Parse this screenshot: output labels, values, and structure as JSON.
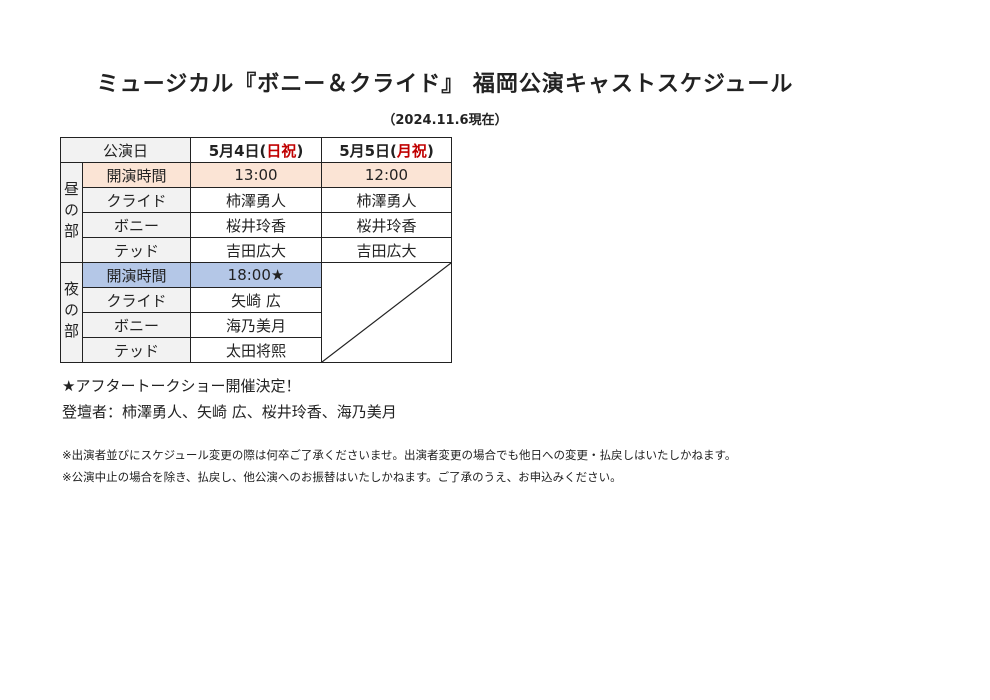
{
  "title": "ミュージカル『ボニー＆クライド』 福岡公演キャストスケジュール",
  "as_of": "（2024.11.6現在）",
  "table": {
    "corner": "公演日",
    "days": [
      {
        "date": "5月4日(",
        "holiday": "日祝",
        ")": ")"
      },
      {
        "date": "5月5日(",
        "holiday": "月祝",
        ")": ")"
      }
    ],
    "close_paren": ")",
    "matinee": {
      "label": "昼の部",
      "rows": [
        {
          "role": "開演時間",
          "d1": "13:00",
          "d2": "12:00"
        },
        {
          "role": "クライド",
          "d1": "柿澤勇人",
          "d2": "柿澤勇人"
        },
        {
          "role": "ボニー",
          "d1": "桜井玲香",
          "d2": "桜井玲香"
        },
        {
          "role": "テッド",
          "d1": "吉田広大",
          "d2": "吉田広大"
        }
      ]
    },
    "evening": {
      "label": "夜の部",
      "rows": [
        {
          "role": "開演時間",
          "d1": "18:00★"
        },
        {
          "role": "クライド",
          "d1": "矢崎 広"
        },
        {
          "role": "ボニー",
          "d1": "海乃美月"
        },
        {
          "role": "テッド",
          "d1": "太田将熙"
        }
      ]
    }
  },
  "after_talk": "★アフタートークショー開催決定！",
  "guests": "登壇者：柿澤勇人、矢崎 広、桜井玲香、海乃美月",
  "notes": [
    "※出演者並びにスケジュール変更の際は何卒ご了承くださいませ。出演者変更の場合でも他日への変更・払戻しはいたしかねます。",
    "※公演中止の場合を除き、払戻し、他公演へのお振替はいたしかねます。ご了承のうえ、お申込みください。"
  ],
  "colors": {
    "matinee_time_bg": "#fbe4d5",
    "evening_time_bg": "#b4c7e7",
    "holiday_red": "#c00000"
  }
}
